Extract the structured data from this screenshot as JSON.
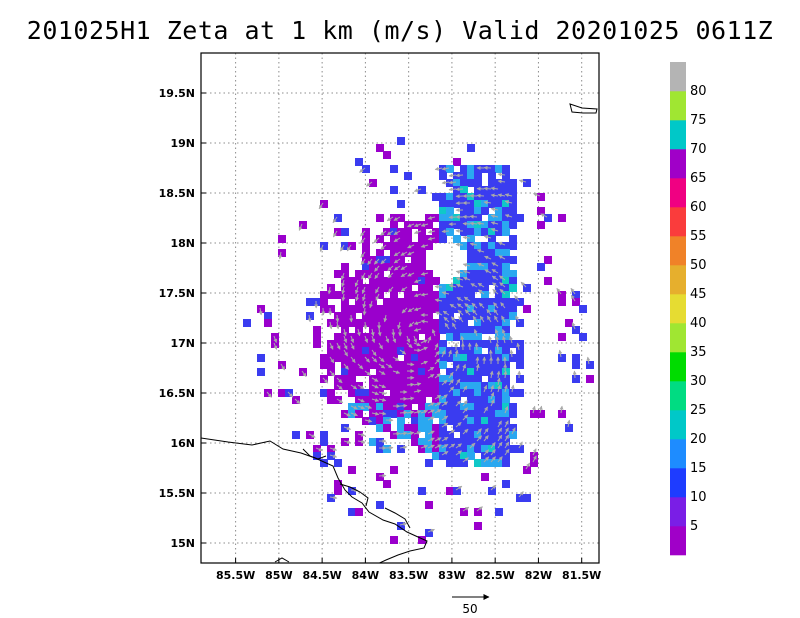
{
  "chart_data": {
    "type": "map",
    "title": "201025H1 Zeta at 1 km (m/s) Valid 20201025  0611Z",
    "x_ticks": [
      "85.5W",
      "85W",
      "84.5W",
      "84W",
      "83.5W",
      "83W",
      "82.5W",
      "82W",
      "81.5W"
    ],
    "x_tick_values": [
      -85.5,
      -85.0,
      -84.5,
      -84.0,
      -83.5,
      -83.0,
      -82.5,
      -82.0,
      -81.5
    ],
    "y_ticks": [
      "15N",
      "15.5N",
      "16N",
      "16.5N",
      "17N",
      "17.5N",
      "18N",
      "18.5N",
      "19N",
      "19.5N"
    ],
    "y_tick_values": [
      15.0,
      15.5,
      16.0,
      16.5,
      17.0,
      17.5,
      18.0,
      18.5,
      19.0,
      19.5
    ],
    "xlim": [
      -85.9,
      -81.3
    ],
    "ylim": [
      14.8,
      19.9
    ],
    "grid": true,
    "colorbar": {
      "labels": [
        "5",
        "10",
        "15",
        "20",
        "25",
        "30",
        "35",
        "40",
        "45",
        "50",
        "55",
        "60",
        "65",
        "70",
        "75",
        "80"
      ],
      "colors": [
        "#a000c8",
        "#7a1ee6",
        "#1e3cff",
        "#1e8cff",
        "#00c8c8",
        "#00dc82",
        "#00dc00",
        "#a0e632",
        "#e6dc32",
        "#e6af2d",
        "#f08228",
        "#fa3c3c",
        "#f00082",
        "#a000c8",
        "#00c8c8",
        "#a0e632",
        "#b4b4b4"
      ]
    },
    "reference_vector": {
      "label": "50",
      "value": 50
    },
    "center": {
      "lon": -83.4,
      "lat": 17.1
    }
  }
}
